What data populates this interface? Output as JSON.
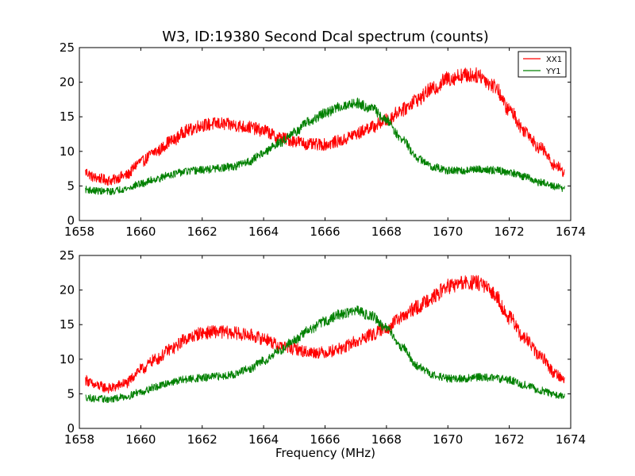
{
  "chart_data": [
    {
      "type": "line",
      "title": "W3, ID:19380 Second Dcal spectrum (counts)",
      "xlabel": "",
      "ylabel": "",
      "xlim": [
        1658,
        1674
      ],
      "ylim": [
        0,
        25
      ],
      "xticks": [
        "1658",
        "1660",
        "1662",
        "1664",
        "1666",
        "1668",
        "1670",
        "1672",
        "1674"
      ],
      "yticks": [
        "0",
        "5",
        "10",
        "15",
        "20",
        "25"
      ],
      "grid": false,
      "legend": "top-right",
      "series": [
        {
          "name": "XX1",
          "color": "#ff0000",
          "x": [
            1658.2,
            1658.5,
            1659.0,
            1659.5,
            1660.0,
            1660.5,
            1661.0,
            1661.5,
            1662.0,
            1662.5,
            1663.0,
            1663.5,
            1664.0,
            1664.5,
            1665.0,
            1665.5,
            1666.0,
            1666.5,
            1667.0,
            1667.5,
            1668.0,
            1668.5,
            1669.0,
            1669.5,
            1670.0,
            1670.5,
            1671.0,
            1671.5,
            1672.0,
            1672.5,
            1673.0,
            1673.5,
            1673.8
          ],
          "values": [
            7.0,
            6.2,
            5.8,
            6.5,
            8.5,
            10.0,
            11.5,
            13.0,
            13.8,
            14.0,
            13.8,
            13.5,
            13.0,
            12.0,
            11.5,
            11.0,
            11.0,
            11.5,
            12.5,
            13.5,
            14.5,
            16.0,
            17.5,
            19.0,
            20.5,
            21.0,
            21.0,
            19.5,
            16.0,
            13.0,
            10.5,
            8.0,
            7.0
          ],
          "noise": 1.1
        },
        {
          "name": "YY1",
          "color": "#008000",
          "x": [
            1658.2,
            1658.5,
            1659.0,
            1659.5,
            1660.0,
            1660.5,
            1661.0,
            1661.5,
            1662.0,
            1662.5,
            1663.0,
            1663.5,
            1664.0,
            1664.5,
            1665.0,
            1665.5,
            1666.0,
            1666.5,
            1667.0,
            1667.5,
            1668.0,
            1668.5,
            1669.0,
            1669.5,
            1670.0,
            1670.5,
            1671.0,
            1671.5,
            1672.0,
            1672.5,
            1673.0,
            1673.5,
            1673.8
          ],
          "values": [
            4.5,
            4.3,
            4.2,
            4.6,
            5.3,
            6.0,
            6.7,
            7.1,
            7.3,
            7.5,
            7.8,
            8.5,
            9.8,
            11.2,
            12.8,
            14.3,
            15.5,
            16.5,
            17.0,
            16.3,
            14.5,
            11.8,
            9.0,
            7.8,
            7.2,
            7.2,
            7.4,
            7.3,
            7.0,
            6.3,
            5.5,
            4.9,
            4.6
          ],
          "noise": 0.8
        }
      ]
    },
    {
      "type": "line",
      "title": "",
      "xlabel": "Frequency (MHz)",
      "ylabel": "",
      "xlim": [
        1658,
        1674
      ],
      "ylim": [
        0,
        25
      ],
      "xticks": [
        "1658",
        "1660",
        "1662",
        "1664",
        "1666",
        "1668",
        "1670",
        "1672",
        "1674"
      ],
      "yticks": [
        "0",
        "5",
        "10",
        "15",
        "20",
        "25"
      ],
      "grid": false,
      "legend": "none",
      "series": [
        {
          "color": "#ff0000",
          "x": [
            1658.2,
            1658.5,
            1659.0,
            1659.5,
            1660.0,
            1660.5,
            1661.0,
            1661.5,
            1662.0,
            1662.5,
            1663.0,
            1663.5,
            1664.0,
            1664.5,
            1665.0,
            1665.5,
            1666.0,
            1666.5,
            1667.0,
            1667.5,
            1668.0,
            1668.5,
            1669.0,
            1669.5,
            1670.0,
            1670.5,
            1671.0,
            1671.5,
            1672.0,
            1672.5,
            1673.0,
            1673.5,
            1673.8
          ],
          "values": [
            7.0,
            6.2,
            5.8,
            6.5,
            8.5,
            10.0,
            11.5,
            13.0,
            13.8,
            14.0,
            13.8,
            13.5,
            13.0,
            12.0,
            11.5,
            11.0,
            11.0,
            11.5,
            12.5,
            13.5,
            14.5,
            16.0,
            17.5,
            19.0,
            20.5,
            21.0,
            21.0,
            19.5,
            16.0,
            13.0,
            10.5,
            8.0,
            7.0
          ],
          "noise": 1.1
        },
        {
          "color": "#008000",
          "x": [
            1658.2,
            1658.5,
            1659.0,
            1659.5,
            1660.0,
            1660.5,
            1661.0,
            1661.5,
            1662.0,
            1662.5,
            1663.0,
            1663.5,
            1664.0,
            1664.5,
            1665.0,
            1665.5,
            1666.0,
            1666.5,
            1667.0,
            1667.5,
            1668.0,
            1668.5,
            1669.0,
            1669.5,
            1670.0,
            1670.5,
            1671.0,
            1671.5,
            1672.0,
            1672.5,
            1673.0,
            1673.5,
            1673.8
          ],
          "values": [
            4.5,
            4.3,
            4.2,
            4.6,
            5.3,
            6.0,
            6.7,
            7.1,
            7.3,
            7.5,
            7.8,
            8.5,
            9.8,
            11.2,
            12.8,
            14.3,
            15.5,
            16.5,
            17.0,
            16.3,
            14.5,
            11.8,
            9.0,
            7.8,
            7.2,
            7.2,
            7.4,
            7.3,
            7.0,
            6.3,
            5.5,
            4.9,
            4.6
          ],
          "noise": 0.8
        }
      ]
    }
  ]
}
